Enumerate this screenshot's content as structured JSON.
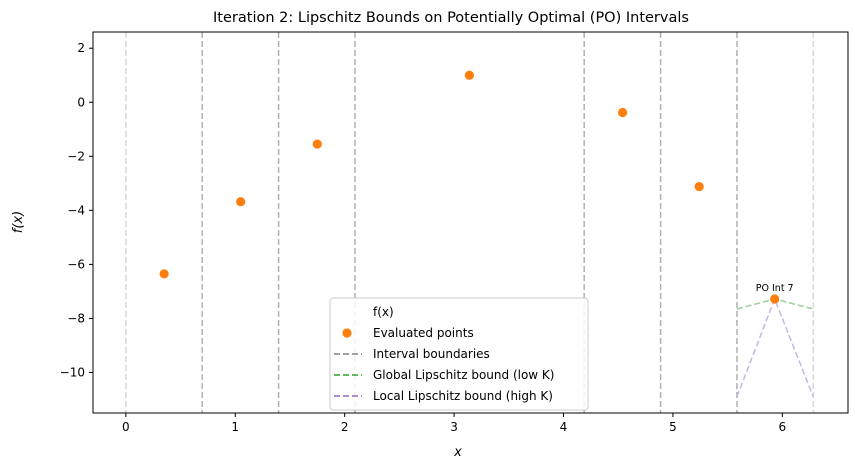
{
  "chart_data": {
    "type": "scatter",
    "title": "Iteration 2: Lipschitz Bounds on Potentially Optimal (PO) Intervals",
    "xlabel": "x",
    "ylabel": "f(x)",
    "xlim": [
      -0.3,
      6.6
    ],
    "ylim": [
      -11.5,
      2.6
    ],
    "xticks": [
      0,
      1,
      2,
      3,
      4,
      5,
      6
    ],
    "yticks": [
      2,
      0,
      -2,
      -4,
      -6,
      -8,
      -10
    ],
    "grid": false,
    "legend_position": "bottom-center",
    "legend": [
      {
        "label": "f(x)",
        "kind": "line",
        "color": "#1f77b4"
      },
      {
        "label": "Evaluated points",
        "kind": "marker",
        "color": "#ff7f0e"
      },
      {
        "label": "Interval boundaries",
        "kind": "dashed",
        "color": "#808080"
      },
      {
        "label": "Global Lipschitz bound (low K)",
        "kind": "dashed",
        "color": "#2ca02c"
      },
      {
        "label": "Local Lipschitz bound (high K)",
        "kind": "dashed",
        "color": "#9467bd"
      }
    ],
    "interval_boundaries": [
      {
        "x": 0.0,
        "style": "light"
      },
      {
        "x": 0.698,
        "style": "dark"
      },
      {
        "x": 1.396,
        "style": "dark"
      },
      {
        "x": 2.094,
        "style": "dark"
      },
      {
        "x": 4.189,
        "style": "dark"
      },
      {
        "x": 4.887,
        "style": "dark"
      },
      {
        "x": 5.585,
        "style": "dark"
      },
      {
        "x": 6.283,
        "style": "light"
      }
    ],
    "series": [
      {
        "name": "Evaluated points",
        "points": [
          {
            "x": 0.35,
            "y": -6.35
          },
          {
            "x": 1.05,
            "y": -3.68
          },
          {
            "x": 1.75,
            "y": -1.55
          },
          {
            "x": 3.14,
            "y": 1.0
          },
          {
            "x": 4.54,
            "y": -0.38
          },
          {
            "x": 5.24,
            "y": -3.12
          },
          {
            "x": 5.93,
            "y": -7.28
          }
        ]
      },
      {
        "name": "Global Lipschitz bound (low K)",
        "points": [
          {
            "x": 5.585,
            "y": -7.65
          },
          {
            "x": 5.93,
            "y": -7.28
          },
          {
            "x": 6.283,
            "y": -7.65
          }
        ]
      },
      {
        "name": "Local Lipschitz bound (high K)",
        "points": [
          {
            "x": 5.585,
            "y": -10.9
          },
          {
            "x": 5.93,
            "y": -7.28
          },
          {
            "x": 6.283,
            "y": -10.9
          }
        ]
      }
    ],
    "annotations": [
      {
        "text": "PO Int 7",
        "x": 5.93,
        "y": -7.28
      }
    ],
    "colors": {
      "points": "#ff7f0e",
      "boundary_dark": "#b0b0b0",
      "boundary_light": "#d9d9d9",
      "global_bound": "#98d098",
      "local_bound": "#c9b3e3"
    }
  }
}
